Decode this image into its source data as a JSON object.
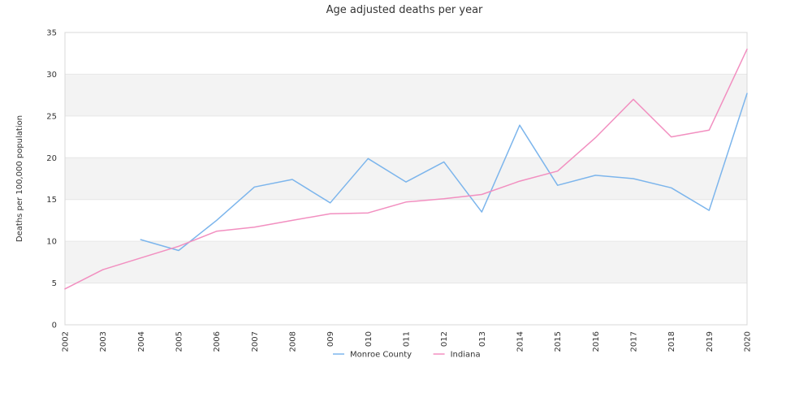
{
  "chart_data": {
    "type": "line",
    "title": "Age adjusted deaths per year",
    "ylabel": "Deaths per 100,000 population",
    "xlabel": "",
    "ylim": [
      0,
      35
    ],
    "yticks": [
      0,
      5,
      10,
      15,
      20,
      25,
      30,
      35
    ],
    "grid": "alternating horizontal bands",
    "legend_position": "bottom-center",
    "categories": [
      "2002",
      "2003",
      "2004",
      "2005",
      "2006",
      "2007",
      "2008",
      "2009",
      "2010",
      "2011",
      "2012",
      "2013",
      "2014",
      "2015",
      "2016",
      "2017",
      "2018",
      "2019",
      "2020"
    ],
    "series": [
      {
        "name": "Monroe County",
        "color": "#7cb5ec",
        "values": [
          null,
          null,
          10.2,
          8.9,
          12.5,
          16.5,
          17.4,
          14.6,
          19.9,
          17.1,
          19.5,
          13.5,
          23.9,
          16.7,
          17.9,
          17.5,
          16.4,
          13.7,
          27.7
        ]
      },
      {
        "name": "Indiana",
        "color": "#f28fc0",
        "values": [
          4.3,
          6.6,
          8.0,
          9.4,
          11.2,
          11.7,
          12.5,
          13.3,
          13.4,
          14.7,
          15.1,
          15.6,
          17.2,
          18.4,
          22.4,
          27.0,
          22.5,
          23.3,
          33.0
        ]
      }
    ]
  }
}
